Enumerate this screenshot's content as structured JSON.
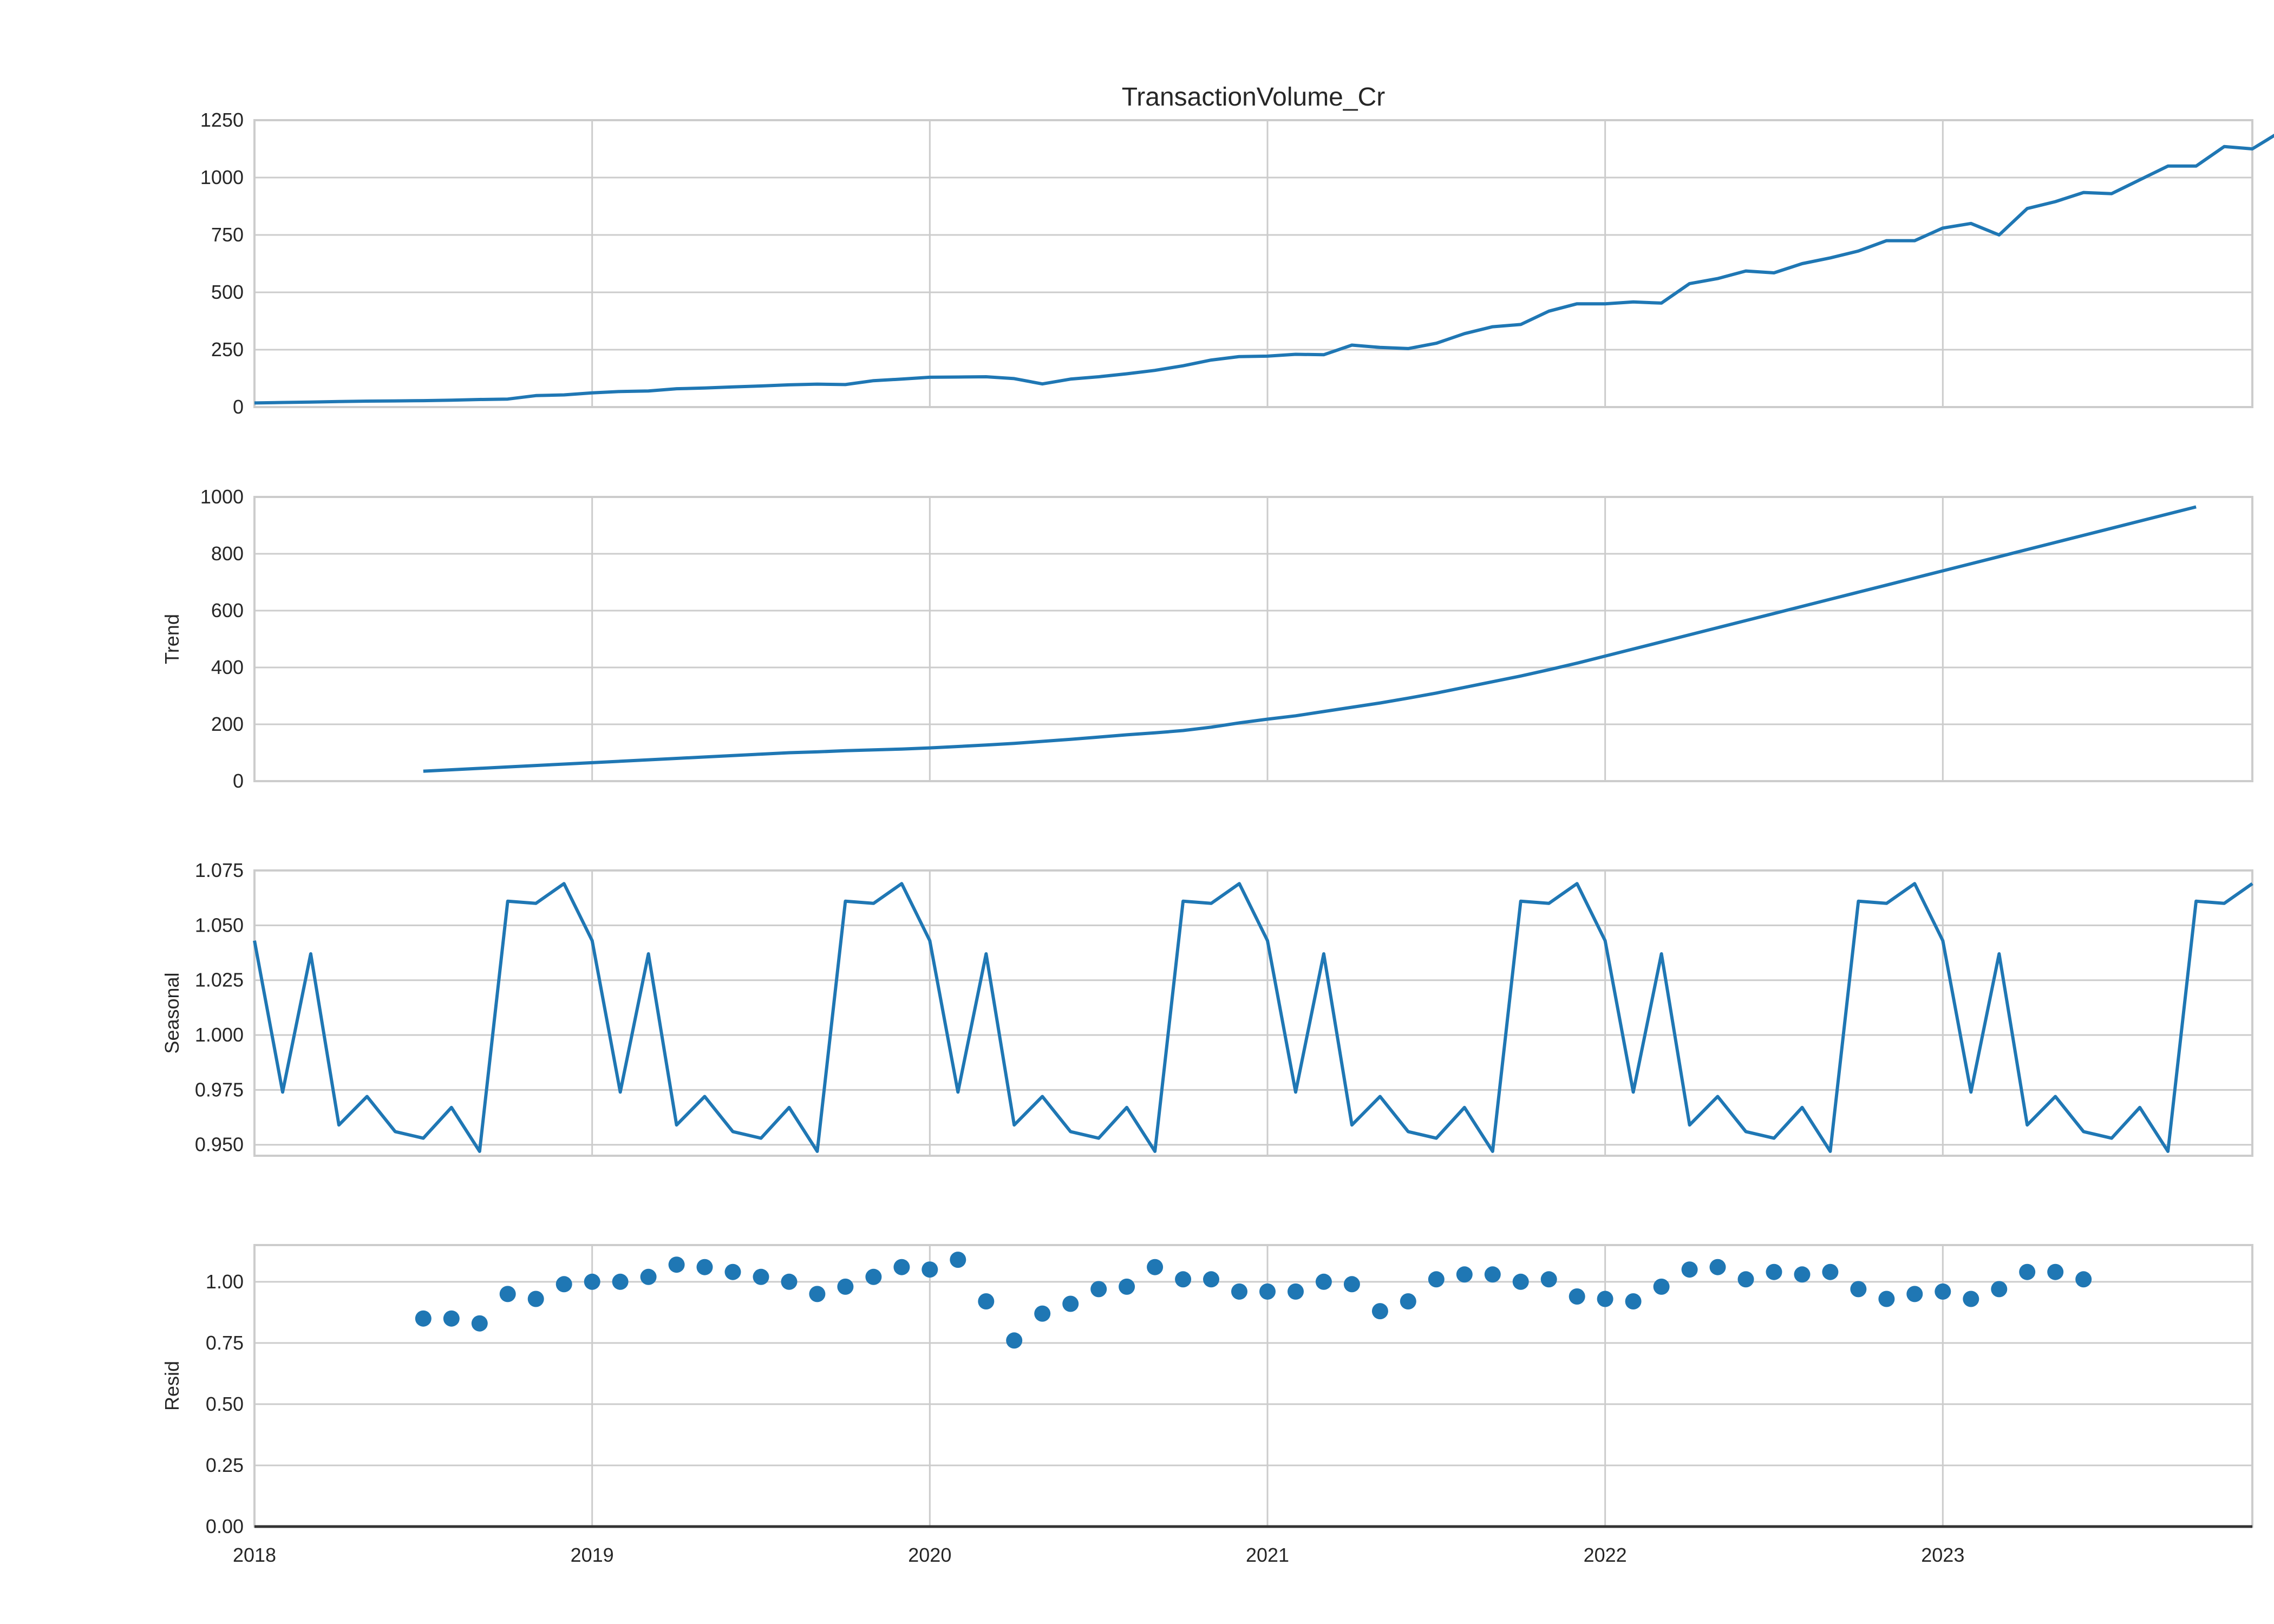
{
  "chart_data": [
    {
      "panel": "observed",
      "type": "line",
      "title": "TransactionVolume_Cr",
      "ylabel": "",
      "ylim": [
        0,
        1250
      ],
      "yticks": [
        0,
        250,
        500,
        750,
        1000,
        1250
      ],
      "ytick_labels": [
        "0",
        "250",
        "500",
        "750",
        "1000",
        "1250"
      ],
      "start": "2018-01",
      "frequency": "monthly",
      "values": [
        18,
        20,
        22,
        24,
        26,
        27,
        28,
        30,
        33,
        35,
        50,
        53,
        62,
        68,
        70,
        80,
        83,
        88,
        92,
        97,
        100,
        98,
        115,
        122,
        130,
        131,
        132,
        124,
        101,
        122,
        132,
        145,
        160,
        180,
        205,
        220,
        222,
        230,
        228,
        270,
        260,
        255,
        278,
        320,
        350,
        360,
        418,
        450,
        450,
        458,
        453,
        538,
        560,
        593,
        585,
        625,
        650,
        680,
        725,
        725,
        780,
        800,
        750,
        865,
        895,
        935,
        930,
        990,
        1050,
        1050,
        1135,
        1125,
        1200
      ],
      "color": "#1f77b4",
      "grid": true
    },
    {
      "panel": "trend",
      "type": "line",
      "ylabel": "Trend",
      "ylim": [
        0,
        1000
      ],
      "yticks": [
        0,
        200,
        400,
        600,
        800,
        1000
      ],
      "ytick_labels": [
        "0",
        "200",
        "400",
        "600",
        "800",
        "1000"
      ],
      "start": "2018-07",
      "frequency": "monthly",
      "values": [
        35,
        40,
        45,
        50,
        55,
        60,
        65,
        70,
        75,
        80,
        85,
        90,
        95,
        100,
        103,
        107,
        110,
        113,
        117,
        122,
        127,
        133,
        140,
        147,
        155,
        163,
        170,
        178,
        190,
        205,
        218,
        230,
        245,
        260,
        275,
        292,
        310,
        330,
        350,
        370,
        392,
        415,
        440,
        465,
        490,
        515,
        540,
        565,
        590,
        615,
        640,
        665,
        690,
        715,
        740,
        765,
        790,
        815,
        840,
        865,
        890,
        915,
        940,
        965
      ],
      "color": "#1f77b4",
      "grid": true
    },
    {
      "panel": "seasonal",
      "type": "line",
      "ylabel": "Seasonal",
      "ylim": [
        0.945,
        1.075
      ],
      "yticks": [
        0.95,
        0.975,
        1.0,
        1.025,
        1.05,
        1.075
      ],
      "ytick_labels": [
        "0.950",
        "0.975",
        "1.000",
        "1.025",
        "1.050",
        "1.075"
      ],
      "start": "2018-01",
      "frequency": "monthly",
      "period_values": [
        1.043,
        0.974,
        1.037,
        0.959,
        0.972,
        0.956,
        0.953,
        0.967,
        0.947,
        1.061,
        1.06,
        1.069
      ],
      "periods": 6,
      "color": "#1f77b4",
      "grid": true
    },
    {
      "panel": "resid",
      "type": "scatter",
      "ylabel": "Resid",
      "ylim": [
        0.0,
        1.15
      ],
      "yticks": [
        0.0,
        0.25,
        0.5,
        0.75,
        1.0
      ],
      "ytick_labels": [
        "0.00",
        "0.25",
        "0.50",
        "0.75",
        "1.00"
      ],
      "baseline": 0.0,
      "start": "2018-07",
      "frequency": "monthly",
      "values": [
        0.85,
        0.85,
        0.83,
        0.95,
        0.93,
        0.99,
        1.0,
        1.0,
        1.02,
        1.07,
        1.06,
        1.04,
        1.02,
        1.0,
        0.95,
        0.98,
        1.02,
        1.06,
        1.05,
        1.09,
        0.92,
        0.76,
        0.87,
        0.91,
        0.97,
        0.98,
        1.06,
        1.01,
        1.01,
        0.96,
        0.96,
        0.96,
        1.0,
        0.99,
        0.88,
        0.92,
        1.01,
        1.03,
        1.03,
        1.0,
        1.01,
        0.94,
        0.93,
        0.92,
        0.98,
        1.05,
        1.06,
        1.01,
        1.04,
        1.03,
        1.04,
        0.97,
        0.93,
        0.95,
        0.96,
        0.93,
        0.97,
        1.04,
        1.04,
        1.01
      ],
      "color": "#1f77b4",
      "grid": true
    }
  ],
  "xaxis": {
    "ticks": [
      {
        "date": "2018-01",
        "label": "2018"
      },
      {
        "date": "2019-01",
        "label": "2019"
      },
      {
        "date": "2020-01",
        "label": "2020"
      },
      {
        "date": "2021-01",
        "label": "2021"
      },
      {
        "date": "2022-01",
        "label": "2022"
      },
      {
        "date": "2023-01",
        "label": "2023"
      }
    ],
    "range": [
      "2018-01",
      "2023-12"
    ]
  },
  "colors": {
    "line": "#1f77b4",
    "grid": "#cccccc",
    "spine": "#cccccc",
    "baseline": "#333333"
  }
}
